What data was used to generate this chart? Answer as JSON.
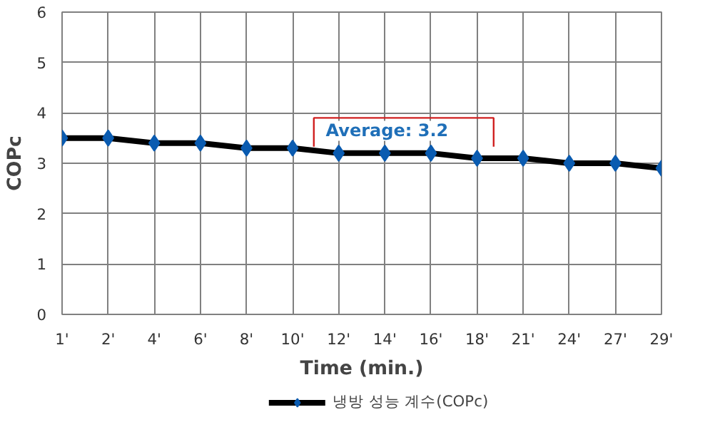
{
  "chart_data": {
    "type": "line",
    "xlabel": "Time (min.)",
    "ylabel": "COPc",
    "categories": [
      "1'",
      "2'",
      "4'",
      "6'",
      "8'",
      "10'",
      "12'",
      "14'",
      "16'",
      "18'",
      "21'",
      "24'",
      "27'",
      "29'"
    ],
    "series": [
      {
        "name": "냉방 성능 계수(COPc)",
        "color": "#000000",
        "colors": [
          "#0a5bb0",
          "#0a5bb0",
          "#0a5bb0",
          "#0a5bb0",
          "#0a5bb0",
          "#0a5bb0",
          "#0a5bb0",
          "#0a5bb0",
          "#0a5bb0",
          "#0a5bb0",
          "#0a5bb0",
          "#0a5bb0",
          "#0a5bb0",
          "#0a5bb0"
        ],
        "values": [
          3.5,
          3.5,
          3.4,
          3.4,
          3.3,
          3.3,
          3.2,
          3.2,
          3.2,
          3.1,
          3.1,
          3.0,
          3.0,
          2.9
        ]
      }
    ],
    "ylim": [
      0,
      6
    ],
    "yticks": [
      0,
      1,
      2,
      3,
      4,
      5,
      6
    ],
    "annotations": [
      "Average:  3.2"
    ],
    "grid": true,
    "legend": "bottom",
    "marker": "diamond",
    "line_style": "solid"
  }
}
